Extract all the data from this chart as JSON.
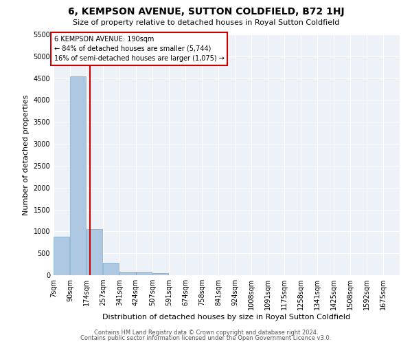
{
  "title": "6, KEMPSON AVENUE, SUTTON COLDFIELD, B72 1HJ",
  "subtitle": "Size of property relative to detached houses in Royal Sutton Coldfield",
  "xlabel": "Distribution of detached houses by size in Royal Sutton Coldfield",
  "ylabel": "Number of detached properties",
  "footnote1": "Contains HM Land Registry data © Crown copyright and database right 2024.",
  "footnote2": "Contains public sector information licensed under the Open Government Licence v3.0.",
  "annotation_line1": "6 KEMPSON AVENUE: 190sqm",
  "annotation_line2": "← 84% of detached houses are smaller (5,744)",
  "annotation_line3": "16% of semi-detached houses are larger (1,075) →",
  "property_size": 190,
  "bar_color": "#adc8e0",
  "bar_edge_color": "#7aaad0",
  "vline_color": "#cc0000",
  "annotation_box_edge_color": "#cc0000",
  "grid_color": "#ffffff",
  "background_color": "#edf2f8",
  "categories": [
    "7sqm",
    "90sqm",
    "174sqm",
    "257sqm",
    "341sqm",
    "424sqm",
    "507sqm",
    "591sqm",
    "674sqm",
    "758sqm",
    "841sqm",
    "924sqm",
    "1008sqm",
    "1091sqm",
    "1175sqm",
    "1258sqm",
    "1341sqm",
    "1425sqm",
    "1508sqm",
    "1592sqm",
    "1675sqm"
  ],
  "bin_edges": [
    7,
    90,
    174,
    257,
    341,
    424,
    507,
    591,
    674,
    758,
    841,
    924,
    1008,
    1091,
    1175,
    1258,
    1341,
    1425,
    1508,
    1592,
    1675
  ],
  "bin_width": 83,
  "values": [
    880,
    4540,
    1060,
    280,
    85,
    75,
    50,
    0,
    0,
    0,
    0,
    0,
    0,
    0,
    0,
    0,
    0,
    0,
    0,
    0
  ],
  "ylim_max": 5500,
  "yticks": [
    0,
    500,
    1000,
    1500,
    2000,
    2500,
    3000,
    3500,
    4000,
    4500,
    5000,
    5500
  ]
}
